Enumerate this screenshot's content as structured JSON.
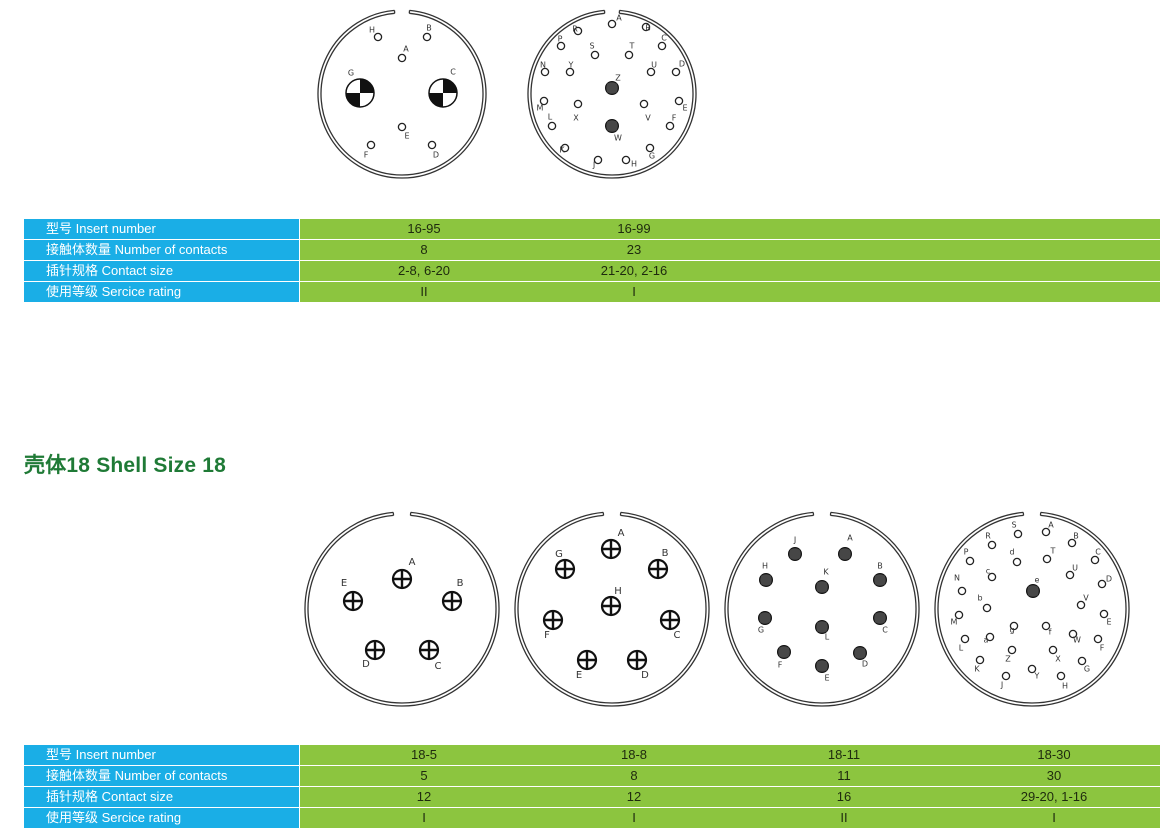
{
  "shell16": {
    "diagrams": [
      {
        "id": "16-95",
        "pins": [
          {
            "label": "H",
            "type": "socket"
          },
          {
            "label": "B",
            "type": "socket"
          },
          {
            "label": "A",
            "type": "socket"
          },
          {
            "label": "G",
            "type": "coax"
          },
          {
            "label": "C",
            "type": "coax"
          },
          {
            "label": "E",
            "type": "socket"
          },
          {
            "label": "F",
            "type": "socket"
          },
          {
            "label": "D",
            "type": "socket"
          }
        ]
      },
      {
        "id": "16-99",
        "pins": [
          {
            "label": "A",
            "type": "socket"
          },
          {
            "label": "B",
            "type": "socket"
          },
          {
            "label": "R",
            "type": "socket"
          },
          {
            "label": "P",
            "type": "socket"
          },
          {
            "label": "S",
            "type": "socket"
          },
          {
            "label": "T",
            "type": "socket"
          },
          {
            "label": "C",
            "type": "socket"
          },
          {
            "label": "N",
            "type": "socket"
          },
          {
            "label": "Y",
            "type": "socket"
          },
          {
            "label": "U",
            "type": "socket"
          },
          {
            "label": "D",
            "type": "socket"
          },
          {
            "label": "Z",
            "type": "solid"
          },
          {
            "label": "M",
            "type": "socket"
          },
          {
            "label": "E",
            "type": "socket"
          },
          {
            "label": "X",
            "type": "socket"
          },
          {
            "label": "V",
            "type": "socket"
          },
          {
            "label": "L",
            "type": "socket"
          },
          {
            "label": "W",
            "type": "solid"
          },
          {
            "label": "F",
            "type": "socket"
          },
          {
            "label": "K",
            "type": "socket"
          },
          {
            "label": "J",
            "type": "socket"
          },
          {
            "label": "H",
            "type": "socket"
          },
          {
            "label": "G",
            "type": "socket"
          }
        ]
      }
    ],
    "table": {
      "rows": [
        {
          "label": "型号  Insert number",
          "values": [
            "16-95",
            "16-99"
          ]
        },
        {
          "label": "接触体数量  Number of contacts",
          "values": [
            "8",
            "23"
          ]
        },
        {
          "label": "插针规格  Contact size",
          "values": [
            "2-8, 6-20",
            "21-20, 2-16"
          ]
        },
        {
          "label": "使用等级  Sercice rating",
          "values": [
            "II",
            "I"
          ]
        }
      ]
    }
  },
  "shell18": {
    "title": "壳体18  Shell Size 18",
    "diagrams": [
      {
        "id": "18-5",
        "pins": [
          {
            "label": "A",
            "type": "cross"
          },
          {
            "label": "E",
            "type": "cross"
          },
          {
            "label": "B",
            "type": "cross"
          },
          {
            "label": "D",
            "type": "cross"
          },
          {
            "label": "C",
            "type": "cross"
          }
        ]
      },
      {
        "id": "18-8",
        "pins": [
          {
            "label": "A",
            "type": "cross"
          },
          {
            "label": "G",
            "type": "cross"
          },
          {
            "label": "B",
            "type": "cross"
          },
          {
            "label": "H",
            "type": "cross"
          },
          {
            "label": "F",
            "type": "cross"
          },
          {
            "label": "C",
            "type": "cross"
          },
          {
            "label": "E",
            "type": "cross"
          },
          {
            "label": "D",
            "type": "cross"
          }
        ]
      },
      {
        "id": "18-11",
        "pins": [
          {
            "label": "J",
            "type": "solid"
          },
          {
            "label": "A",
            "type": "solid"
          },
          {
            "label": "H",
            "type": "solid"
          },
          {
            "label": "K",
            "type": "solid"
          },
          {
            "label": "B",
            "type": "solid"
          },
          {
            "label": "G",
            "type": "solid"
          },
          {
            "label": "L",
            "type": "solid"
          },
          {
            "label": "C",
            "type": "solid"
          },
          {
            "label": "F",
            "type": "solid"
          },
          {
            "label": "D",
            "type": "solid"
          },
          {
            "label": "E",
            "type": "solid"
          }
        ]
      },
      {
        "id": "18-30",
        "pins": [
          {
            "label": "S",
            "type": "socket"
          },
          {
            "label": "A",
            "type": "socket"
          },
          {
            "label": "R",
            "type": "socket"
          },
          {
            "label": "B",
            "type": "socket"
          },
          {
            "label": "P",
            "type": "socket"
          },
          {
            "label": "d",
            "type": "socket"
          },
          {
            "label": "T",
            "type": "socket"
          },
          {
            "label": "C",
            "type": "socket"
          },
          {
            "label": "c",
            "type": "socket"
          },
          {
            "label": "U",
            "type": "socket"
          },
          {
            "label": "N",
            "type": "socket"
          },
          {
            "label": "e",
            "type": "solid"
          },
          {
            "label": "D",
            "type": "socket"
          },
          {
            "label": "b",
            "type": "socket"
          },
          {
            "label": "V",
            "type": "socket"
          },
          {
            "label": "M",
            "type": "socket"
          },
          {
            "label": "E",
            "type": "socket"
          },
          {
            "label": "g",
            "type": "socket"
          },
          {
            "label": "a",
            "type": "socket"
          },
          {
            "label": "f",
            "type": "socket"
          },
          {
            "label": "W",
            "type": "socket"
          },
          {
            "label": "L",
            "type": "socket"
          },
          {
            "label": "F",
            "type": "socket"
          },
          {
            "label": "Z",
            "type": "socket"
          },
          {
            "label": "X",
            "type": "socket"
          },
          {
            "label": "K",
            "type": "socket"
          },
          {
            "label": "G",
            "type": "socket"
          },
          {
            "label": "J",
            "type": "socket"
          },
          {
            "label": "Y",
            "type": "socket"
          },
          {
            "label": "H",
            "type": "socket"
          }
        ]
      }
    ],
    "table": {
      "rows": [
        {
          "label": "型号  Insert number",
          "values": [
            "18-5",
            "18-8",
            "18-11",
            "18-30"
          ]
        },
        {
          "label": "接触体数量  Number of contacts",
          "values": [
            "5",
            "8",
            "11",
            "30"
          ]
        },
        {
          "label": "插针规格  Contact size",
          "values": [
            "12",
            "12",
            "16",
            "29-20, 1-16"
          ]
        },
        {
          "label": "使用等级  Sercice rating",
          "values": [
            "I",
            "I",
            "II",
            "I"
          ]
        }
      ]
    }
  },
  "colors": {
    "label_bg": "#1aaee6",
    "value_bg": "#8cc53f",
    "title": "#1f7a36"
  }
}
